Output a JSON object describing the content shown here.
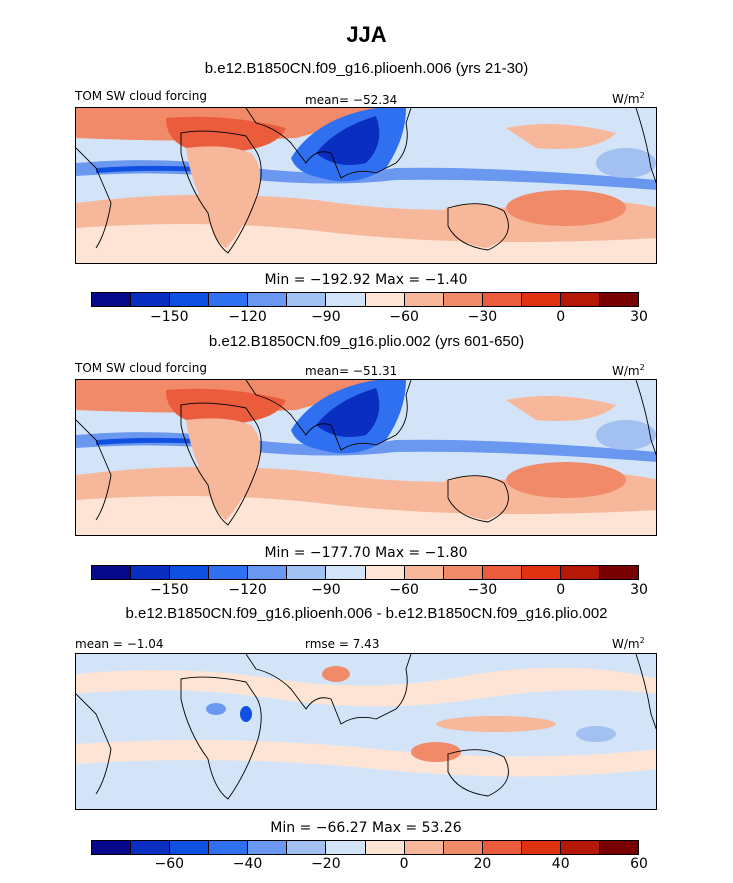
{
  "figure": {
    "season": "JJA"
  },
  "colors": [
    "#08088c",
    "#0a2ec0",
    "#1050e0",
    "#2e70f0",
    "#6a98f0",
    "#a3c0f2",
    "#d4e4f8",
    "#fde4d4",
    "#f7b79a",
    "#f08a68",
    "#ea5c3c",
    "#de3212",
    "#b41806",
    "#780000"
  ],
  "panels": [
    {
      "title": "b.e12.B1850CN.f09_g16.plioenh.006 (yrs 21-30)",
      "left_label": "TOM SW cloud forcing",
      "center_label": "mean= −52.34",
      "units": "W/m",
      "units_sup": "2",
      "min_max": "Min = −192.92 Max = −1.40",
      "ticks": [
        "−150",
        "−120",
        "−90",
        "−60",
        "−30",
        "0",
        "30"
      ],
      "kind": "mean"
    },
    {
      "title": "b.e12.B1850CN.f09_g16.plio.002 (yrs 601-650)",
      "left_label": "TOM SW cloud forcing",
      "center_label": "mean= −51.31",
      "units": "W/m",
      "units_sup": "2",
      "min_max": "Min = −177.70 Max = −1.80",
      "ticks": [
        "−150",
        "−120",
        "−90",
        "−60",
        "−30",
        "0",
        "30"
      ],
      "kind": "mean"
    },
    {
      "title": "b.e12.B1850CN.f09_g16.plioenh.006 - b.e12.B1850CN.f09_g16.plio.002",
      "left_label": "mean = −1.04",
      "center_label": "rmse = 7.43",
      "units": "W/m",
      "units_sup": "2",
      "min_max": "Min = −66.27 Max = 53.26",
      "ticks": [
        "−60",
        "−40",
        "−20",
        "0",
        "20",
        "40",
        "60"
      ],
      "kind": "diff"
    }
  ]
}
